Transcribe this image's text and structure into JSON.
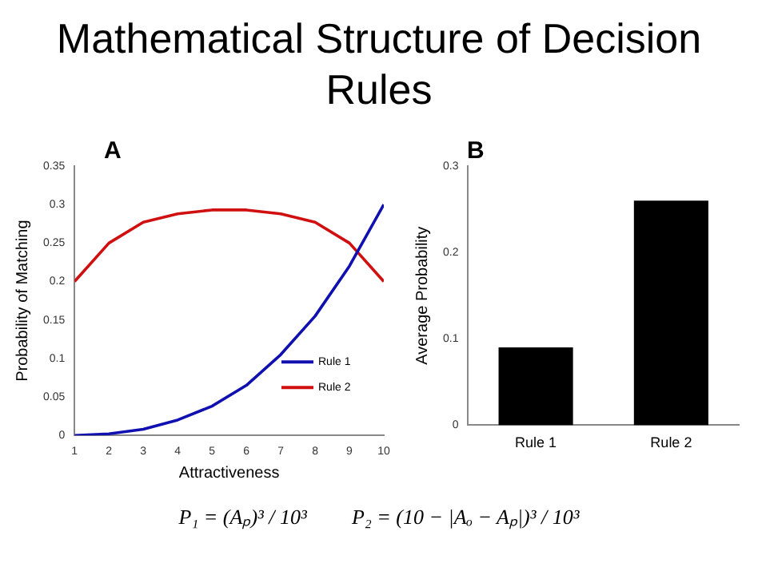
{
  "chart_data": [
    {
      "type": "line",
      "title": "Mathematical Structure of Decision Rules",
      "annotations": [
        "A"
      ],
      "xlabel": "Attractiveness",
      "ylabel": "Probability of Matching",
      "x": [
        1,
        2,
        3,
        4,
        5,
        6,
        7,
        8,
        9,
        10
      ],
      "series": [
        {
          "name": "Rule 1",
          "color": "#1010b0",
          "values": [
            0,
            0.002,
            0.008,
            0.02,
            0.038,
            0.065,
            0.105,
            0.155,
            0.22,
            0.3
          ]
        },
        {
          "name": "Rule 2",
          "color": "#d01010",
          "values": [
            0.2,
            0.25,
            0.277,
            0.288,
            0.293,
            0.293,
            0.288,
            0.277,
            0.25,
            0.2
          ]
        }
      ],
      "xlim": [
        1,
        10
      ],
      "xticks": [
        1,
        2,
        3,
        4,
        5,
        6,
        7,
        8,
        9,
        10
      ],
      "ylim": [
        0,
        0.35
      ],
      "yticks": [
        0,
        0.05,
        0.1,
        0.15,
        0.2,
        0.25,
        0.3,
        0.35
      ],
      "grid": false,
      "legend": "bottom right",
      "marker": "none",
      "line_style": "solid"
    },
    {
      "type": "bar",
      "annotations": [
        "B",
        "P₁ = (Aₚ)³ / 10³",
        "P₂ = (10 − |Aₒ − Aₚ|)³ / 10³"
      ],
      "ylabel": "Average Probability",
      "categories": [
        "Rule 1",
        "Rule 2"
      ],
      "values": [
        0.09,
        0.26
      ],
      "color": "#000000",
      "ylim": [
        0,
        0.3
      ],
      "yticks": [
        0,
        0.1,
        0.2,
        0.3
      ],
      "grid": false
    }
  ]
}
